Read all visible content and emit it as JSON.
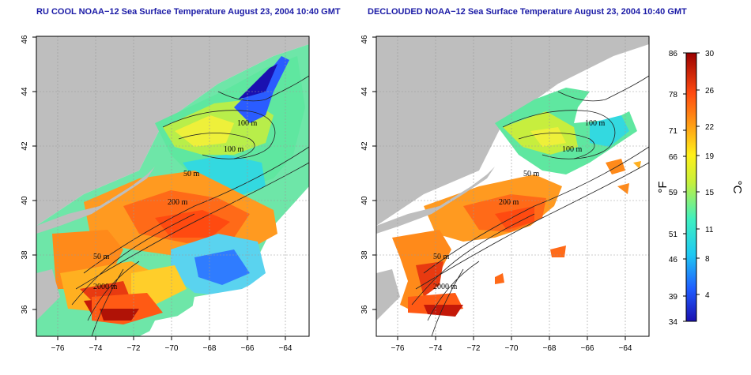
{
  "titles": {
    "left": "RU COOL NOAA−12 Sea Surface Temperature August 23, 2004 10:40 GMT",
    "right": "DECLOUDED NOAA−12 Sea Surface Temperature August 23, 2004 10:40 GMT"
  },
  "axes": {
    "lon_ticks": [
      "−76",
      "−74",
      "−72",
      "−70",
      "−68",
      "−66",
      "−64"
    ],
    "lat_ticks": [
      "36",
      "38",
      "40",
      "42",
      "44",
      "46"
    ]
  },
  "contours": {
    "left": [
      "100 m",
      "100 m",
      "50 m",
      "200 m",
      "50 m",
      "2000 m"
    ],
    "right": [
      "100 m",
      "100 m",
      "50 m",
      "200 m",
      "50 m",
      "2000 m"
    ]
  },
  "colorbar": {
    "fahrenheit_ticks": [
      "86",
      "78",
      "71",
      "66",
      "59",
      "51",
      "46",
      "39",
      "34"
    ],
    "celsius_ticks": [
      "30",
      "26",
      "22",
      "19",
      "15",
      "11",
      "8",
      "4"
    ],
    "fahrenheit_unit": "°F",
    "celsius_unit": "°C"
  },
  "colors": {
    "title": "#1a1aa6",
    "land": "#bebebe",
    "cloud": "#ffffff"
  }
}
